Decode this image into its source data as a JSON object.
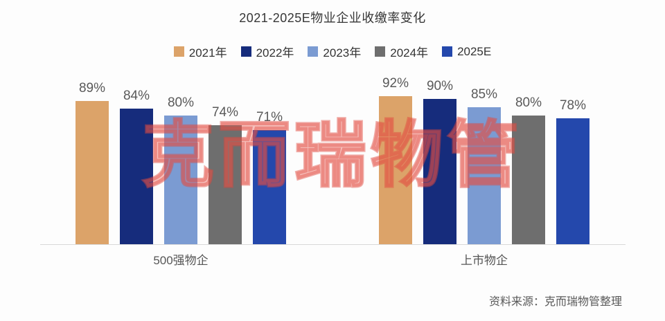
{
  "chart_data": {
    "type": "bar",
    "title": "2021-2025E物业企业收缴率变化",
    "categories": [
      "500强物企",
      "上市物企"
    ],
    "series": [
      {
        "name": "2021年",
        "color": "#DCA369",
        "values": [
          89,
          92
        ]
      },
      {
        "name": "2022年",
        "color": "#162C7C",
        "values": [
          84,
          90
        ]
      },
      {
        "name": "2023年",
        "color": "#7B9BD2",
        "values": [
          80,
          85
        ]
      },
      {
        "name": "2024年",
        "color": "#6E6E6E",
        "values": [
          74,
          80
        ]
      },
      {
        "name": "2025E",
        "color": "#2448AC",
        "values": [
          71,
          78
        ]
      }
    ],
    "value_suffix": "%",
    "ylim": [
      0,
      100
    ],
    "legend_position": "top",
    "grid": false,
    "xlabel": "",
    "ylabel": ""
  },
  "watermark": {
    "text": "克而瑞物管",
    "color": "#E05A50"
  },
  "source": "资料来源：克而瑞物管整理"
}
